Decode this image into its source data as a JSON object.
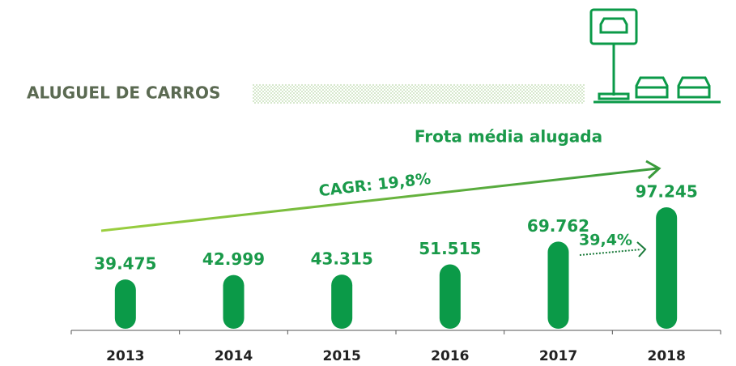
{
  "chart_data": {
    "type": "bar",
    "title": "ALUGUEL DE CARROS",
    "subtitle": "Frota média alugada",
    "annotations": [
      "CAGR: 19,8%",
      "39,4%"
    ],
    "categories": [
      "2013",
      "2014",
      "2015",
      "2016",
      "2017",
      "2018"
    ],
    "values": [
      39475,
      42999,
      43315,
      51515,
      69762,
      97245
    ],
    "value_labels": [
      "39.475",
      "42.999",
      "43.315",
      "51.515",
      "69.762",
      "97.245"
    ],
    "color": "#0b9a48"
  }
}
